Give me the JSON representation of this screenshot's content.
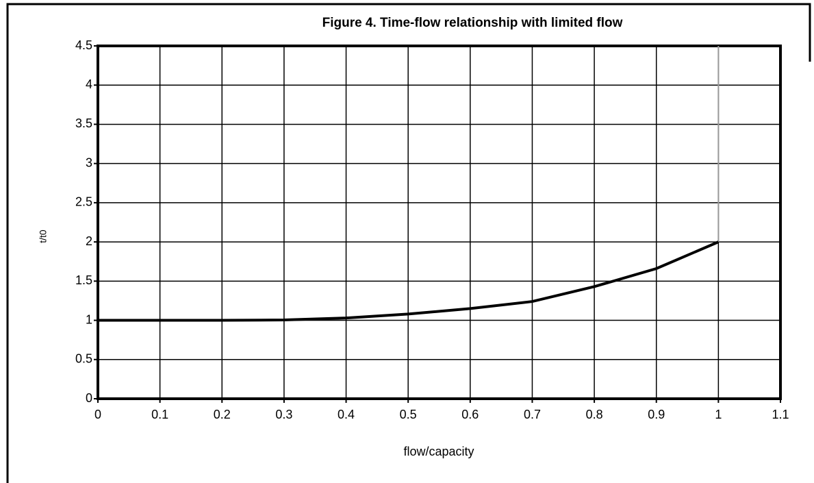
{
  "chart_data": {
    "type": "line",
    "title": "Figure 4. Time-flow relationship with limited flow",
    "x_label": "flow/capacity",
    "y_label": "t/t0",
    "series": [
      {
        "color": "#000000",
        "x": [
          0,
          0.1,
          0.2,
          0.3,
          0.4,
          0.5,
          0.6,
          0.7,
          0.8,
          0.9,
          1.0
        ],
        "values": [
          1.0,
          1.0,
          1.0,
          1.005,
          1.03,
          1.08,
          1.15,
          1.24,
          1.43,
          1.66,
          2.0
        ]
      },
      {
        "color": "#999999",
        "x": [
          1.0,
          1.0
        ],
        "values": [
          2.0,
          4.5
        ]
      }
    ],
    "xlim": [
      0,
      1.1
    ],
    "xticks": [
      0,
      0.1,
      0.2,
      0.3,
      0.4,
      0.5,
      0.6,
      0.7,
      0.8,
      0.9,
      1,
      1.1
    ],
    "ylim": [
      0,
      4.5
    ],
    "yticks": [
      0,
      0.5,
      1,
      1.5,
      2,
      2.5,
      3,
      3.5,
      4,
      4.5
    ],
    "grid": true
  }
}
